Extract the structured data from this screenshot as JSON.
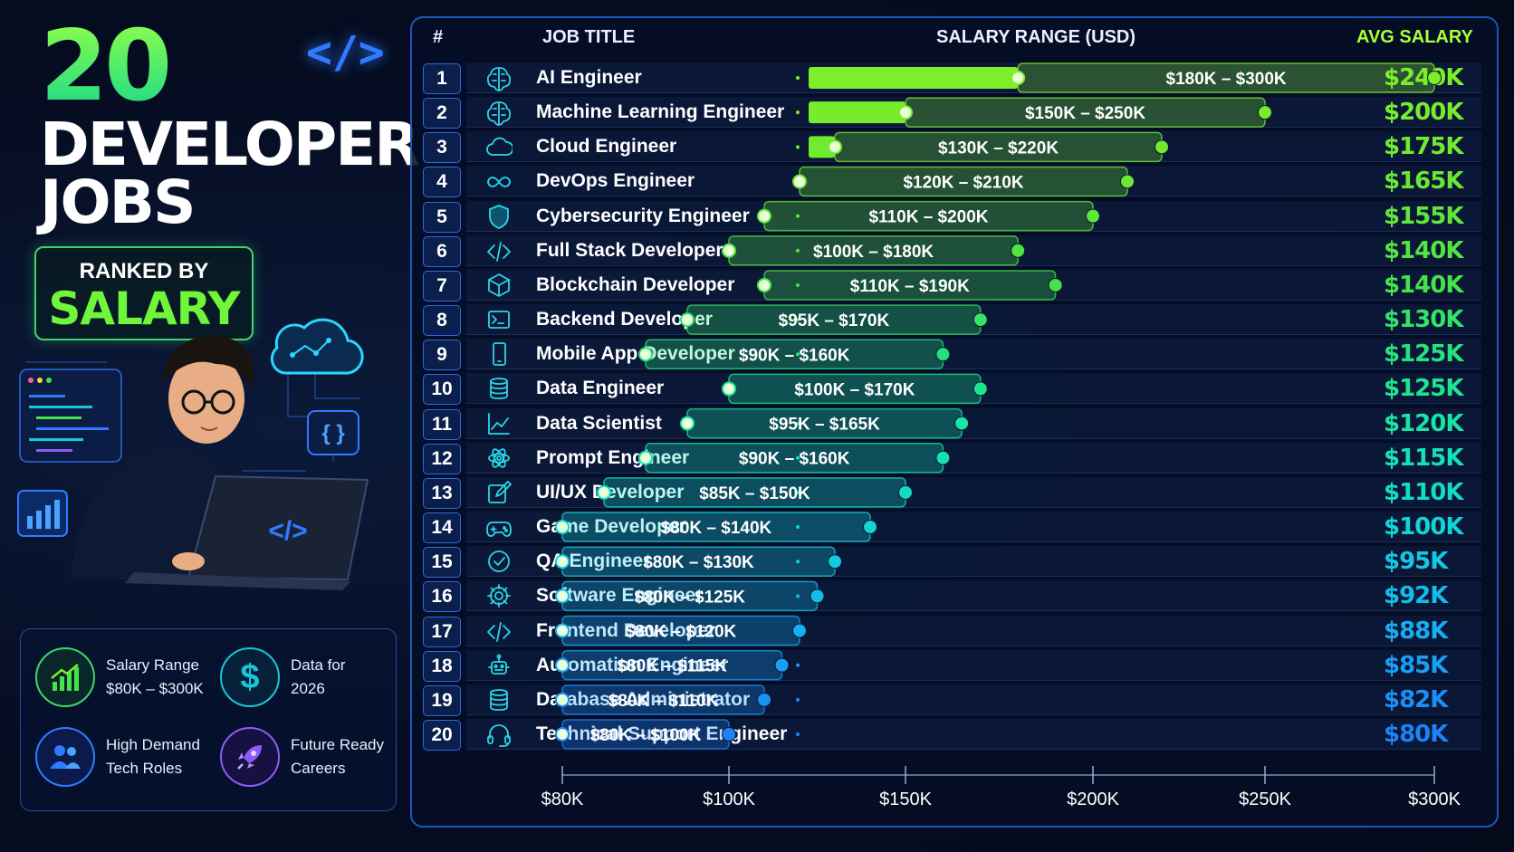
{
  "hero": {
    "number": "20",
    "title_line1": "DEVELOPER",
    "title_line2": "JOBS",
    "ranked_by": "RANKED BY",
    "salary": "SALARY",
    "logo_glyph": "</>"
  },
  "illustration": {
    "laptop_glyph": "</>",
    "braces_glyph": "{ }"
  },
  "info": [
    {
      "line1": "Salary Range",
      "line2": "$80K – $300K",
      "icon": "chart-up-icon",
      "color": "#3fd46a"
    },
    {
      "line1": "Data for",
      "line2": "2026",
      "icon": "dollar-icon",
      "color": "#16c7d8"
    },
    {
      "line1": "High Demand",
      "line2": "Tech Roles",
      "icon": "users-icon",
      "color": "#2f7bff"
    },
    {
      "line1": "Future Ready",
      "line2": "Careers",
      "icon": "rocket-icon",
      "color": "#8b5cf6"
    }
  ],
  "headers": {
    "rank": "#",
    "job": "JOB TITLE",
    "range": "SALARY RANGE (USD)",
    "avg": "AVG SALARY"
  },
  "chart_data": {
    "type": "bar",
    "title": "20 DEVELOPER JOBS RANKED BY SALARY",
    "xlabel": "SALARY RANGE (USD)",
    "x_ticks": [
      "$80K",
      "$100K",
      "$150K",
      "$200K",
      "$250K",
      "$300K"
    ],
    "tick_values": [
      80,
      100,
      150,
      200,
      250,
      300
    ],
    "xlim": [
      80,
      300
    ],
    "rows": [
      {
        "rank": "1",
        "title": "AI Engineer",
        "icon": "brain-chip-icon",
        "min": 180,
        "max": 300,
        "label": "$180K – $300K",
        "avg": "$240K",
        "color": "#7dee2a"
      },
      {
        "rank": "2",
        "title": "Machine Learning Engineer",
        "icon": "brain-chip-icon",
        "min": 150,
        "max": 250,
        "label": "$150K – $250K",
        "avg": "$200K",
        "color": "#78ec2c"
      },
      {
        "rank": "3",
        "title": "Cloud Engineer",
        "icon": "cloud-icon",
        "min": 130,
        "max": 220,
        "label": "$130K – $220K",
        "avg": "$175K",
        "color": "#72ea30"
      },
      {
        "rank": "4",
        "title": "DevOps Engineer",
        "icon": "infinity-icon",
        "min": 120,
        "max": 210,
        "label": "$120K – $210K",
        "avg": "$165K",
        "color": "#6ae834"
      },
      {
        "rank": "5",
        "title": "Cybersecurity Engineer",
        "icon": "shield-icon",
        "min": 110,
        "max": 200,
        "label": "$110K – $200K",
        "avg": "$155K",
        "color": "#5fe63a"
      },
      {
        "rank": "6",
        "title": "Full Stack Developer",
        "icon": "code-icon",
        "min": 100,
        "max": 180,
        "label": "$100K – $180K",
        "avg": "$140K",
        "color": "#52e442"
      },
      {
        "rank": "7",
        "title": "Blockchain Developer",
        "icon": "cube-icon",
        "min": 110,
        "max": 190,
        "label": "$110K – $190K",
        "avg": "$140K",
        "color": "#45e24c"
      },
      {
        "rank": "8",
        "title": "Backend Developer",
        "icon": "terminal-icon",
        "min": 95,
        "max": 170,
        "label": "$95K – $170K",
        "avg": "$130K",
        "color": "#33e266"
      },
      {
        "rank": "9",
        "title": "Mobile App Developer",
        "icon": "phone-icon",
        "min": 90,
        "max": 160,
        "label": "$90K – $160K",
        "avg": "$125K",
        "color": "#26e27c"
      },
      {
        "rank": "10",
        "title": "Data Engineer",
        "icon": "database-icon",
        "min": 100,
        "max": 170,
        "label": "$100K – $170K",
        "avg": "$125K",
        "color": "#1ee490"
      },
      {
        "rank": "11",
        "title": "Data Scientist",
        "icon": "line-chart-icon",
        "min": 95,
        "max": 165,
        "label": "$95K – $165K",
        "avg": "$120K",
        "color": "#18e4a4"
      },
      {
        "rank": "12",
        "title": "Prompt Engineer",
        "icon": "atom-icon",
        "min": 90,
        "max": 160,
        "label": "$90K – $160K",
        "avg": "$115K",
        "color": "#14e2b6"
      },
      {
        "rank": "13",
        "title": "UI/UX Developer",
        "icon": "edit-icon",
        "min": 85,
        "max": 150,
        "label": "$85K – $150K",
        "avg": "$110K",
        "color": "#12dcc6"
      },
      {
        "rank": "14",
        "title": "Game Developer",
        "icon": "gamepad-icon",
        "min": 80,
        "max": 140,
        "label": "$80K – $140K",
        "avg": "$100K",
        "color": "#12d4d6"
      },
      {
        "rank": "15",
        "title": "QA Engineer",
        "icon": "check-badge-icon",
        "min": 80,
        "max": 130,
        "label": "$80K – $130K",
        "avg": "$95K",
        "color": "#12c8e2"
      },
      {
        "rank": "16",
        "title": "Software Engineer",
        "icon": "gear-icon",
        "min": 80,
        "max": 125,
        "label": "$80K – $125K",
        "avg": "$92K",
        "color": "#14bcea"
      },
      {
        "rank": "17",
        "title": "Frontend Developer",
        "icon": "code-icon",
        "min": 80,
        "max": 120,
        "label": "$80K – $120K",
        "avg": "$88K",
        "color": "#16aef0"
      },
      {
        "rank": "18",
        "title": "Automation Engineer",
        "icon": "robot-icon",
        "min": 80,
        "max": 115,
        "label": "$80K – $115K",
        "avg": "$85K",
        "color": "#189ff4"
      },
      {
        "rank": "19",
        "title": "Database Administrator",
        "icon": "database-icon",
        "min": 80,
        "max": 110,
        "label": "$80K – $110K",
        "avg": "$82K",
        "color": "#1a90f6"
      },
      {
        "rank": "20",
        "title": "Technical Support Engineer",
        "icon": "headset-icon",
        "min": 80,
        "max": 100,
        "label": "$80K – $100K",
        "avg": "$80K",
        "color": "#1c82f8"
      }
    ]
  }
}
